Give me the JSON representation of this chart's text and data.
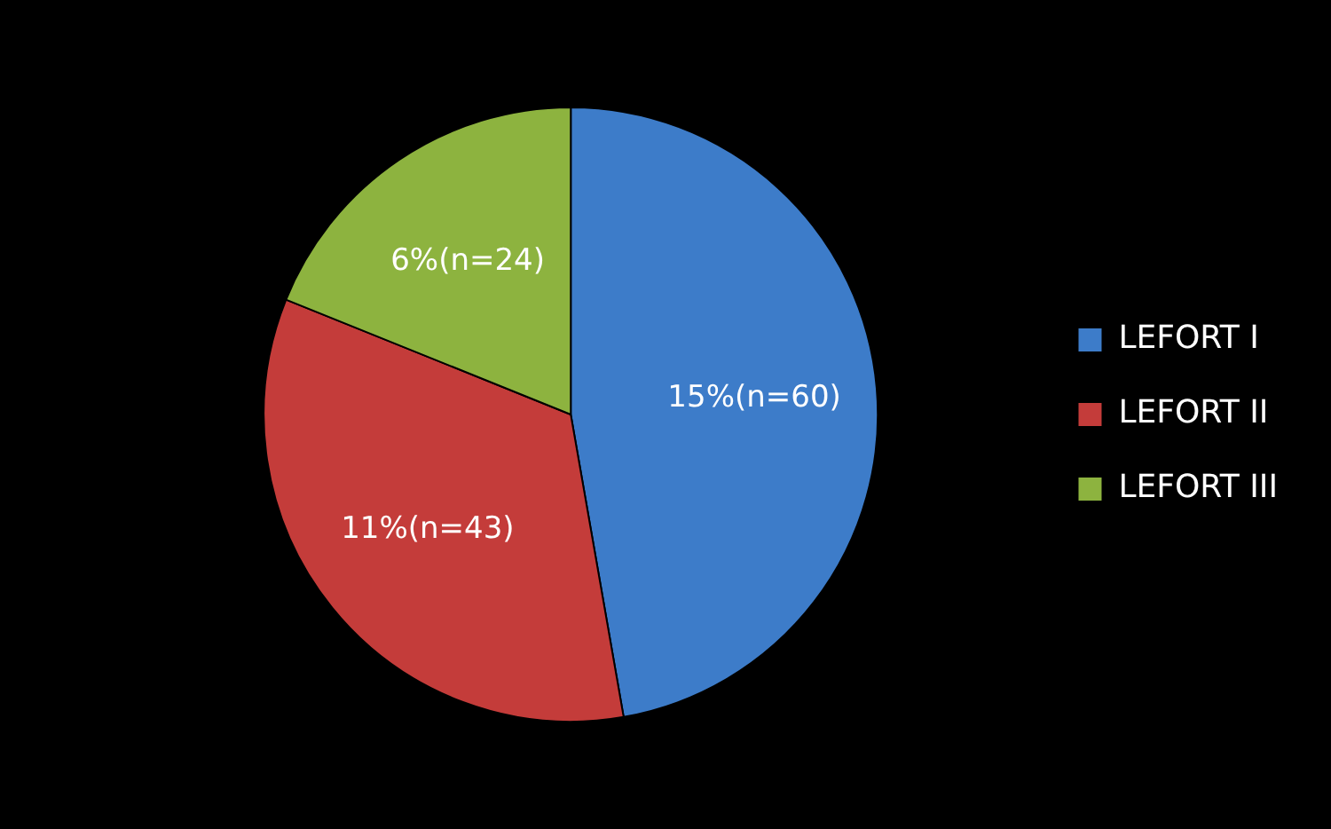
{
  "chart_data": {
    "type": "pie",
    "categories": [
      "LEFORT I",
      "LEFORT II",
      "LEFORT III"
    ],
    "values": [
      60,
      43,
      24
    ],
    "colors": [
      "#3d7cc9",
      "#c43c3a",
      "#8db33f"
    ],
    "value_labels": [
      "15%(n=60)",
      "11%(n=43)",
      "6%(n=24)"
    ],
    "legend": "right"
  }
}
